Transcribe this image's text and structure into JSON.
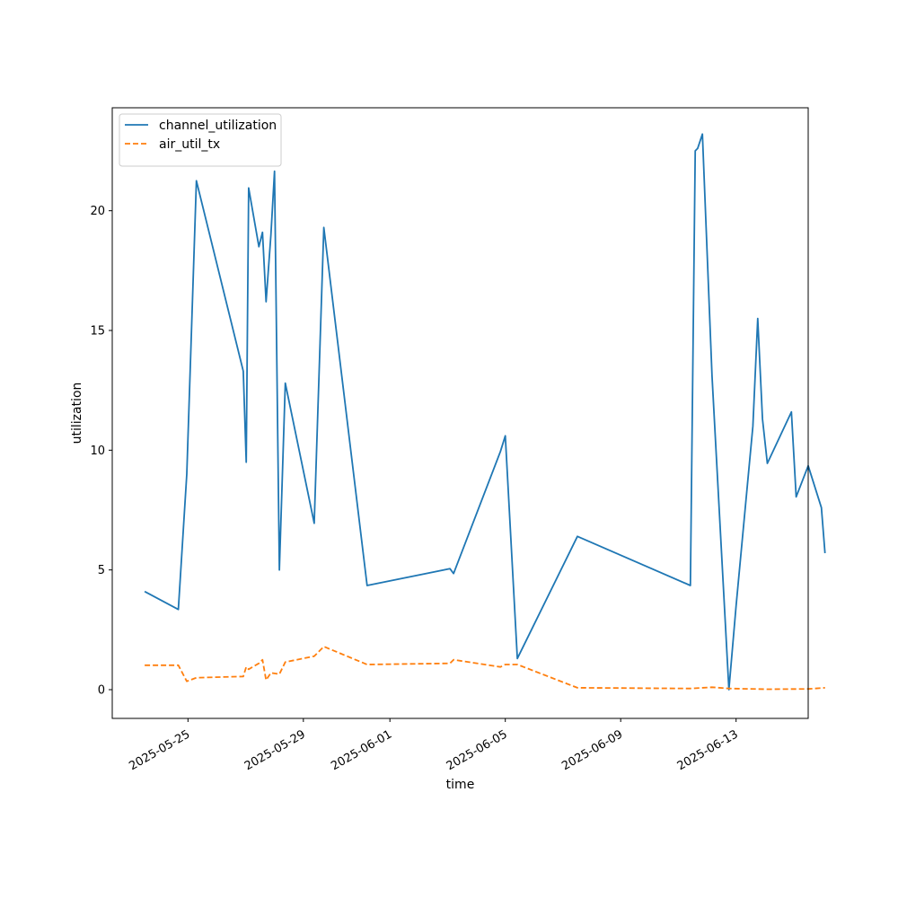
{
  "chart_data": {
    "type": "line",
    "xlabel": "time",
    "ylabel": "utilization",
    "x_axis_type": "date",
    "xlim": [
      "2025-05-22T09:00",
      "2025-06-15T12:00"
    ],
    "ylim": [
      -1.2,
      24.3
    ],
    "x_ticks": [
      "2025-05-25",
      "2025-05-29",
      "2025-06-01",
      "2025-06-05",
      "2025-06-09",
      "2025-06-13"
    ],
    "y_ticks": [
      0,
      5,
      10,
      15,
      20
    ],
    "grid": false,
    "legend_position": "top-left",
    "series": [
      {
        "name": "channel_utilization",
        "color": "#1f77b4",
        "dash": "solid",
        "points": [
          [
            "2025-05-23T12:00",
            4.1
          ],
          [
            "2025-05-24T16:00",
            3.35
          ],
          [
            "2025-05-24T23:00",
            9.0
          ],
          [
            "2025-05-25T07:00",
            21.25
          ],
          [
            "2025-05-26T22:00",
            13.3
          ],
          [
            "2025-05-27T00:30",
            9.5
          ],
          [
            "2025-05-27T02:30",
            20.95
          ],
          [
            "2025-05-27T11:00",
            18.5
          ],
          [
            "2025-05-27T14:00",
            19.1
          ],
          [
            "2025-05-27T17:00",
            16.2
          ],
          [
            "2025-05-27T21:00",
            19.0
          ],
          [
            "2025-05-28T00:00",
            21.65
          ],
          [
            "2025-05-28T04:00",
            5.0
          ],
          [
            "2025-05-28T09:00",
            12.8
          ],
          [
            "2025-05-29T09:00",
            6.95
          ],
          [
            "2025-05-29T17:00",
            19.3
          ],
          [
            "2025-05-31T05:00",
            4.35
          ],
          [
            "2025-06-03T02:00",
            5.05
          ],
          [
            "2025-06-03T05:00",
            4.85
          ],
          [
            "2025-06-04T20:00",
            9.95
          ],
          [
            "2025-06-05T00:00",
            10.6
          ],
          [
            "2025-06-05T10:00",
            1.3
          ],
          [
            "2025-06-07T12:00",
            6.4
          ],
          [
            "2025-06-11T10:00",
            4.35
          ],
          [
            "2025-06-11T14:00",
            22.5
          ],
          [
            "2025-06-11T16:00",
            22.6
          ],
          [
            "2025-06-11T20:00",
            23.2
          ],
          [
            "2025-06-12T04:00",
            13.1
          ],
          [
            "2025-06-12T18:00",
            0.0
          ],
          [
            "2025-06-13T00:00",
            3.5
          ],
          [
            "2025-06-13T14:00",
            11.0
          ],
          [
            "2025-06-13T18:00",
            15.5
          ],
          [
            "2025-06-13T22:00",
            11.3
          ],
          [
            "2025-06-14T02:00",
            9.45
          ],
          [
            "2025-06-14T22:00",
            11.6
          ],
          [
            "2025-06-15T02:00",
            8.05
          ],
          [
            "2025-06-15T12:00",
            9.35
          ],
          [
            "2025-06-15T23:00",
            7.6
          ],
          [
            "2025-06-16T02:00",
            5.7
          ]
        ]
      },
      {
        "name": "air_util_tx",
        "color": "#ff7f0e",
        "dash": "dashed",
        "points": [
          [
            "2025-05-23T12:00",
            1.02
          ],
          [
            "2025-05-24T16:00",
            1.02
          ],
          [
            "2025-05-24T23:00",
            0.35
          ],
          [
            "2025-05-25T07:00",
            0.5
          ],
          [
            "2025-05-26T22:00",
            0.55
          ],
          [
            "2025-05-27T00:30",
            0.95
          ],
          [
            "2025-05-27T02:30",
            0.85
          ],
          [
            "2025-05-27T11:00",
            1.1
          ],
          [
            "2025-05-27T14:00",
            1.25
          ],
          [
            "2025-05-27T17:00",
            0.4
          ],
          [
            "2025-05-27T21:00",
            0.7
          ],
          [
            "2025-05-28T04:00",
            0.65
          ],
          [
            "2025-05-28T09:00",
            1.15
          ],
          [
            "2025-05-29T09:00",
            1.4
          ],
          [
            "2025-05-29T17:00",
            1.8
          ],
          [
            "2025-05-31T05:00",
            1.05
          ],
          [
            "2025-06-03T02:00",
            1.1
          ],
          [
            "2025-06-03T05:00",
            1.25
          ],
          [
            "2025-06-04T20:00",
            0.95
          ],
          [
            "2025-06-05T00:00",
            1.05
          ],
          [
            "2025-06-05T10:00",
            1.05
          ],
          [
            "2025-06-07T12:00",
            0.08
          ],
          [
            "2025-06-11T10:00",
            0.05
          ],
          [
            "2025-06-12T04:00",
            0.1
          ],
          [
            "2025-06-12T18:00",
            0.05
          ],
          [
            "2025-06-14T02:00",
            0.02
          ],
          [
            "2025-06-15T12:00",
            0.03
          ],
          [
            "2025-06-16T02:00",
            0.08
          ]
        ]
      }
    ]
  }
}
